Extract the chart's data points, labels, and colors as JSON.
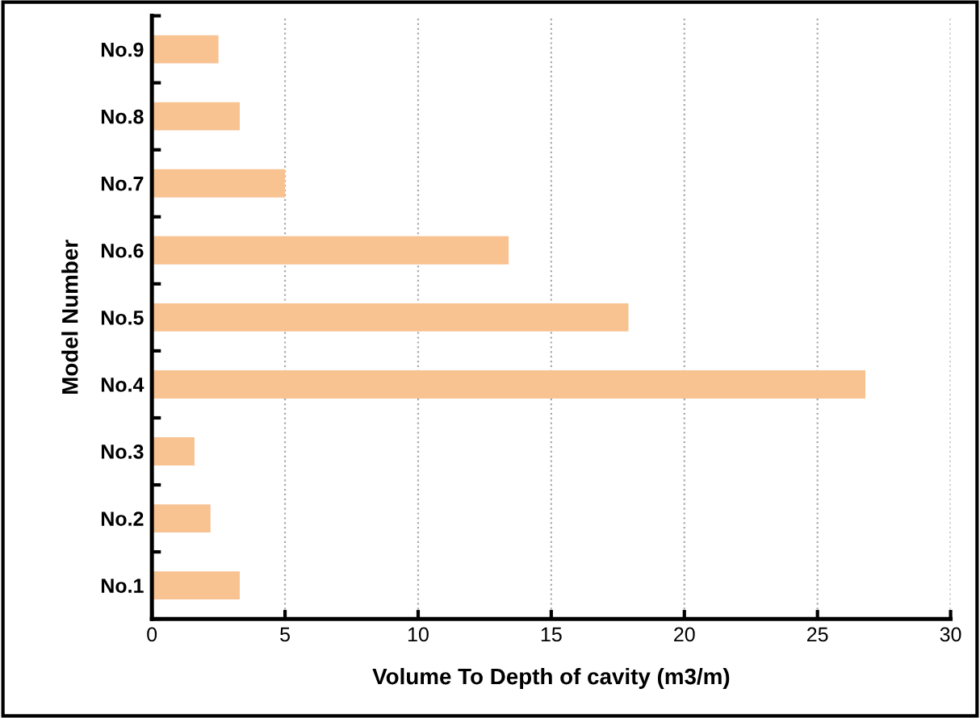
{
  "chart_data": {
    "type": "bar",
    "orientation": "horizontal",
    "xlabel": "Volume To Depth of cavity (m3/m)",
    "ylabel": "Model Number",
    "categories": [
      "No.9",
      "No.8",
      "No.7",
      "No.6",
      "No.5",
      "No.4",
      "No.3",
      "No.2",
      "No.1"
    ],
    "values": [
      2.5,
      3.3,
      5.0,
      13.4,
      17.9,
      26.8,
      1.6,
      2.2,
      3.3
    ],
    "color": "#f8c291",
    "xlim": [
      0,
      30
    ],
    "xticks": [
      0,
      5,
      10,
      15,
      20,
      25,
      30
    ],
    "grid": "x",
    "legend": false
  }
}
